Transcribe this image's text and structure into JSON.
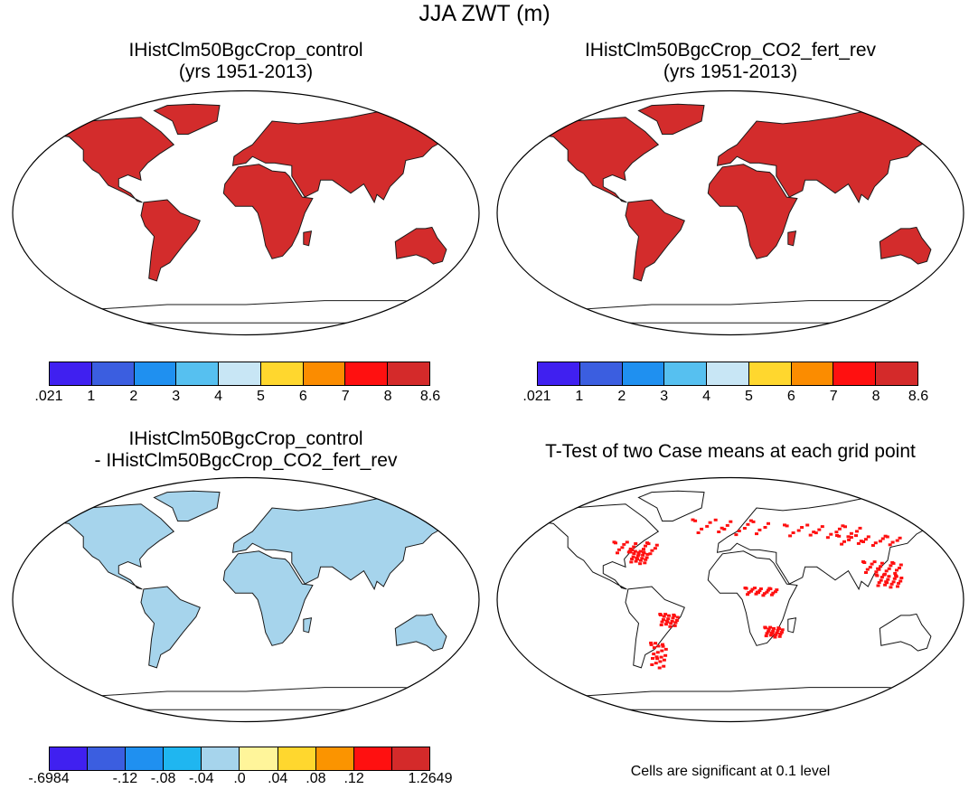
{
  "title": "JJA ZWT (m)",
  "panels": [
    {
      "title": "IHistClm50BgcCrop_control",
      "subtitle": "(yrs 1951-2013)"
    },
    {
      "title": "IHistClm50BgcCrop_CO2_fert_rev",
      "subtitle": "(yrs 1951-2013)"
    },
    {
      "title": "IHistClm50BgcCrop_control",
      "subtitle": "- IHistClm50BgcCrop_CO2_fert_rev"
    },
    {
      "title": "T-Test of two Case means at each grid point",
      "subtitle": ""
    }
  ],
  "colorbar_abs": {
    "labels": [
      ".021",
      "1",
      "2",
      "3",
      "4",
      "5",
      "6",
      "7",
      "8",
      "8.6"
    ],
    "colors": [
      "#4020f0",
      "#3b5ee0",
      "#1f90f0",
      "#56c0f0",
      "#c8e6f5",
      "#ffd72e",
      "#fb8c00",
      "#ff1010",
      "#d42a2a"
    ]
  },
  "colorbar_diff": {
    "labels": [
      "-.6984",
      "-.12",
      "-.08",
      "-.04",
      ".0",
      ".04",
      ".08",
      ".12",
      "1.2649"
    ],
    "colors": [
      "#4020f0",
      "#3b5ee0",
      "#1f90f0",
      "#1fb6f0",
      "#a6d4ec",
      "#fff59a",
      "#ffd72e",
      "#fb9400",
      "#ff1010",
      "#d42a2a"
    ]
  },
  "note": "Cells are significant at 0.1 level"
}
